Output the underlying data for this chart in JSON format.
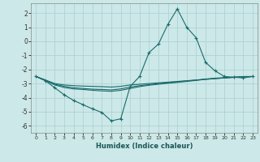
{
  "xlabel": "Humidex (Indice chaleur)",
  "bg_color": "#cce8e8",
  "line_color": "#1a6b6b",
  "grid_color": "#aacfcf",
  "xlim": [
    -0.5,
    23.5
  ],
  "ylim": [
    -6.5,
    2.7
  ],
  "yticks": [
    -6,
    -5,
    -4,
    -3,
    -2,
    -1,
    0,
    1,
    2
  ],
  "xticks": [
    0,
    1,
    2,
    3,
    4,
    5,
    6,
    7,
    8,
    9,
    10,
    11,
    12,
    13,
    14,
    15,
    16,
    17,
    18,
    19,
    20,
    21,
    22,
    23
  ],
  "line1_x": [
    0,
    1,
    2,
    3,
    4,
    5,
    6,
    7,
    8,
    9,
    10,
    11,
    12,
    13,
    14,
    15,
    16,
    17,
    18,
    19,
    20,
    21,
    22,
    23
  ],
  "line1_y": [
    -2.5,
    -2.8,
    -3.3,
    -3.8,
    -4.2,
    -4.5,
    -4.8,
    -5.05,
    -5.65,
    -5.5,
    -3.2,
    -2.5,
    -0.8,
    -0.2,
    1.2,
    2.3,
    1.0,
    0.25,
    -1.5,
    -2.1,
    -2.5,
    -2.55,
    -2.6,
    -2.5
  ],
  "line2_x": [
    0,
    1,
    2,
    3,
    4,
    5,
    6,
    7,
    8,
    9,
    10,
    11,
    12,
    13,
    14,
    15,
    16,
    17,
    18,
    19,
    20,
    21,
    22,
    23
  ],
  "line2_y": [
    -2.5,
    -2.75,
    -3.0,
    -3.1,
    -3.15,
    -3.18,
    -3.2,
    -3.22,
    -3.25,
    -3.2,
    -3.1,
    -3.05,
    -3.0,
    -2.95,
    -2.9,
    -2.85,
    -2.8,
    -2.75,
    -2.7,
    -2.65,
    -2.6,
    -2.55,
    -2.5,
    -2.5
  ],
  "line3_x": [
    0,
    1,
    2,
    3,
    4,
    5,
    6,
    7,
    8,
    9,
    10,
    11,
    12,
    13,
    14,
    15,
    16,
    17,
    18,
    19,
    20,
    21,
    22,
    23
  ],
  "line3_y": [
    -2.5,
    -2.75,
    -3.05,
    -3.2,
    -3.3,
    -3.35,
    -3.4,
    -3.42,
    -3.45,
    -3.38,
    -3.25,
    -3.15,
    -3.08,
    -3.0,
    -2.95,
    -2.88,
    -2.82,
    -2.75,
    -2.68,
    -2.62,
    -2.58,
    -2.55,
    -2.52,
    -2.5
  ],
  "line4_x": [
    0,
    1,
    2,
    3,
    4,
    5,
    6,
    7,
    8,
    9,
    10,
    11,
    12,
    13,
    14,
    15,
    16,
    17,
    18,
    19,
    20,
    21,
    22,
    23
  ],
  "line4_y": [
    -2.5,
    -2.78,
    -3.1,
    -3.28,
    -3.38,
    -3.42,
    -3.48,
    -3.52,
    -3.55,
    -3.48,
    -3.35,
    -3.22,
    -3.12,
    -3.05,
    -2.98,
    -2.92,
    -2.85,
    -2.78,
    -2.7,
    -2.65,
    -2.6,
    -2.57,
    -2.53,
    -2.5
  ]
}
